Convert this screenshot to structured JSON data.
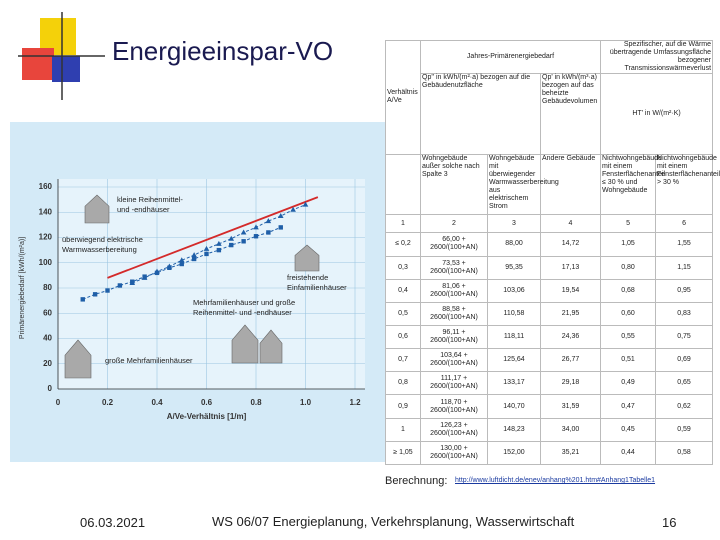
{
  "slide": {
    "title": "Energieeinspar-VO",
    "date": "06.03.2021",
    "footer": "WS 06/07 Energieplanung, Verkehrsplanung, Wasserwirtschaft",
    "page": "16",
    "source_label": "Berechnung:",
    "source_link": "http://www.luftdicht.de/enev/anhang%201.htm#Anhang1Tabelle1"
  },
  "chart_data": {
    "type": "line",
    "ylabel": "Primärenergiebedarf [kWh/(m²a)]",
    "xlabel": "A/Ve-Verhältnis [1/m]",
    "xlim": [
      0,
      1.2
    ],
    "ylim": [
      0,
      160
    ],
    "xticks": [
      0,
      0.2,
      0.4,
      0.6,
      0.8,
      {
        "value": 1,
        "label": "1.0"
      },
      1.2
    ],
    "yticks": [
      0,
      20,
      40,
      60,
      80,
      100,
      120,
      140,
      160
    ],
    "grid": true,
    "annotations": [
      {
        "lines": [
          "kleine Reihenmittel-",
          "und -endhäuser"
        ]
      },
      {
        "lines": [
          "überwiegend elektrische",
          "Warmwasserbereitung"
        ]
      },
      {
        "lines": [
          "freistehende",
          "Einfamilienhäuser"
        ]
      },
      {
        "lines": [
          "Mehrfamilienhäuser und große",
          "Reihenmittel- und -endhäuser"
        ]
      },
      {
        "lines": [
          "große Mehrfamilienhäuser"
        ]
      }
    ],
    "series": [
      {
        "color": "#d42a2a",
        "marker": "none",
        "x": [
          0.2,
          1.05
        ],
        "values": [
          88,
          152
        ]
      },
      {
        "color": "#1f5fa8",
        "marker": "triangle",
        "x": [
          0.3,
          0.35,
          0.4,
          0.45,
          0.5,
          0.55,
          0.6,
          0.65,
          0.7,
          0.75,
          0.8,
          0.85,
          0.9,
          0.95,
          1.0
        ],
        "values": [
          84,
          88,
          93,
          97,
          102,
          106,
          111,
          115,
          119,
          124,
          128,
          133,
          137,
          142,
          146
        ]
      },
      {
        "color": "#1f5fa8",
        "marker": "square",
        "x": [
          0.1,
          0.15,
          0.2,
          0.25,
          0.3,
          0.35,
          0.4,
          0.45,
          0.5,
          0.55,
          0.6,
          0.65,
          0.7,
          0.75,
          0.8,
          0.85,
          0.9
        ],
        "values": [
          71,
          75,
          78,
          82,
          85,
          89,
          92,
          96,
          99,
          103,
          107,
          110,
          114,
          117,
          121,
          124,
          128
        ]
      }
    ]
  },
  "table": {
    "group1": "Jahres-Primärenergiebedarf",
    "group2": "Spezifischer, auf die Wärme übertragende Umfassungsfläche bezogener Transmissionswärmeverlust",
    "col_ratio": "Verhältnis A/Ve",
    "col_qp_area": "Qp'' in kWh/(m²·a) bezogen auf die Gebäudenutzfläche",
    "col_qp_volume": "Qp' in kWh/(m³·a) bezogen auf das beheizte Gebäudevolumen",
    "col_ht": "HT' in W/(m²·K)",
    "sub": [
      "Wohngebäude außer solche nach Spalte 3",
      "Wohngebäude mit überwiegender Warmwasserbereitung aus elektrischem Strom",
      "Andere Gebäude",
      "Nichtwohngebäude mit einem Fensterflächenanteil ≤ 30 % und Wohngebäude",
      "Nichtwohngebäude mit einem Fensterflächenanteil > 30 %"
    ],
    "numbers": [
      "1",
      "2",
      "3",
      "4",
      "5",
      "6"
    ],
    "rows": [
      [
        "≤ 0,2",
        "66,00 + 2600/(100+AN)",
        "88,00",
        "14,72",
        "1,05",
        "1,55"
      ],
      [
        "0,3",
        "73,53 + 2600/(100+AN)",
        "95,35",
        "17,13",
        "0,80",
        "1,15"
      ],
      [
        "0,4",
        "81,06 + 2600/(100+AN)",
        "103,06",
        "19,54",
        "0,68",
        "0,95"
      ],
      [
        "0,5",
        "88,58 + 2600/(100+AN)",
        "110,58",
        "21,95",
        "0,60",
        "0,83"
      ],
      [
        "0,6",
        "96,11 + 2600/(100+AN)",
        "118,11",
        "24,36",
        "0,55",
        "0,75"
      ],
      [
        "0,7",
        "103,64 + 2600/(100+AN)",
        "125,64",
        "26,77",
        "0,51",
        "0,69"
      ],
      [
        "0,8",
        "111,17 + 2600/(100+AN)",
        "133,17",
        "29,18",
        "0,49",
        "0,65"
      ],
      [
        "0,9",
        "118,70 + 2600/(100+AN)",
        "140,70",
        "31,59",
        "0,47",
        "0,62"
      ],
      [
        "1",
        "126,23 + 2600/(100+AN)",
        "148,23",
        "34,00",
        "0,45",
        "0,59"
      ],
      [
        "≥ 1,05",
        "130,00 + 2600/(100+AN)",
        "152,00",
        "35,21",
        "0,44",
        "0,58"
      ]
    ]
  }
}
